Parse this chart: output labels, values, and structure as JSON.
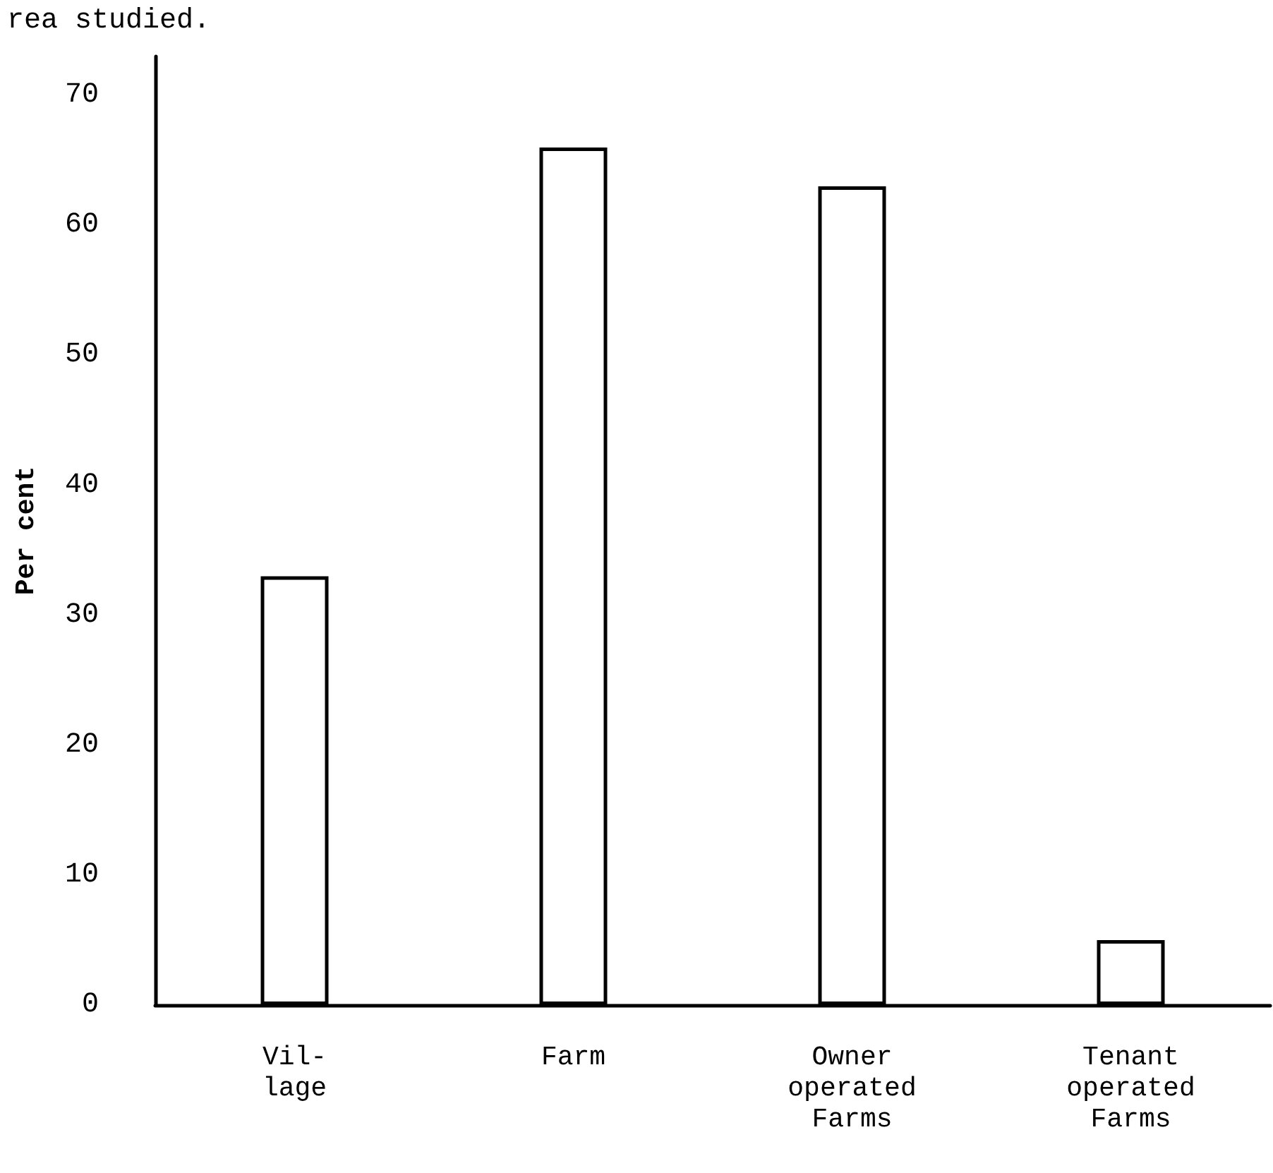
{
  "chart_data": {
    "type": "bar",
    "title": "rea studied.",
    "ylabel": "Per cent",
    "categories": [
      "Vil-\nlage",
      "Farm",
      "Owner\noperated\nFarms",
      "Tenant\noperated\nFarms"
    ],
    "values": [
      33,
      66,
      63,
      5
    ],
    "color": "#ffffff",
    "ylim": [
      0,
      73
    ],
    "yticks": [
      0,
      10,
      20,
      30,
      40,
      50,
      60,
      70
    ]
  }
}
